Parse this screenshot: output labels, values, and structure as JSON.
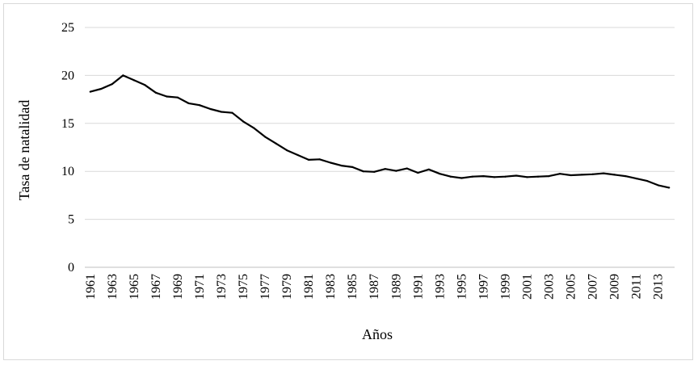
{
  "chart_data": {
    "type": "line",
    "ylabel": "Tasa de natalidad",
    "xlabel": "Años",
    "ylim": [
      0,
      25
    ],
    "yticks": [
      0,
      5,
      10,
      15,
      20,
      25
    ],
    "grid": "horizontal",
    "xlim": [
      1961,
      2014
    ],
    "xtick_labels": [
      "1961",
      "1963",
      "1965",
      "1967",
      "1969",
      "1971",
      "1973",
      "1975",
      "1977",
      "1979",
      "1981",
      "1983",
      "1985",
      "1987",
      "1989",
      "1991",
      "1993",
      "1995",
      "1997",
      "1999",
      "2001",
      "2003",
      "2005",
      "2007",
      "2009",
      "2011",
      "2013"
    ],
    "line_color": "#000000",
    "series": [
      {
        "x": [
          1961,
          1962,
          1963,
          1964,
          1965,
          1966,
          1967,
          1968,
          1969,
          1970,
          1971,
          1972,
          1973,
          1974,
          1975,
          1976,
          1977,
          1978,
          1979,
          1980,
          1981,
          1982,
          1983,
          1984,
          1985,
          1986,
          1987,
          1988,
          1989,
          1990,
          1991,
          1992,
          1993,
          1994,
          1995,
          1996,
          1997,
          1998,
          1999,
          2000,
          2001,
          2002,
          2003,
          2004,
          2005,
          2006,
          2007,
          2008,
          2009,
          2010,
          2011,
          2012,
          2013,
          2014
        ],
        "values": [
          18.3,
          18.6,
          19.1,
          20.0,
          19.5,
          19.0,
          18.2,
          17.8,
          17.7,
          17.1,
          16.9,
          16.5,
          16.2,
          16.1,
          15.2,
          14.5,
          13.6,
          12.9,
          12.2,
          11.7,
          11.2,
          11.25,
          10.9,
          10.6,
          10.45,
          10.0,
          9.95,
          10.25,
          10.05,
          10.3,
          9.85,
          10.2,
          9.75,
          9.45,
          9.3,
          9.45,
          9.5,
          9.4,
          9.45,
          9.55,
          9.4,
          9.45,
          9.5,
          9.75,
          9.6,
          9.65,
          9.7,
          9.8,
          9.65,
          9.5,
          9.25,
          9.0,
          8.55,
          8.3
        ]
      }
    ]
  }
}
